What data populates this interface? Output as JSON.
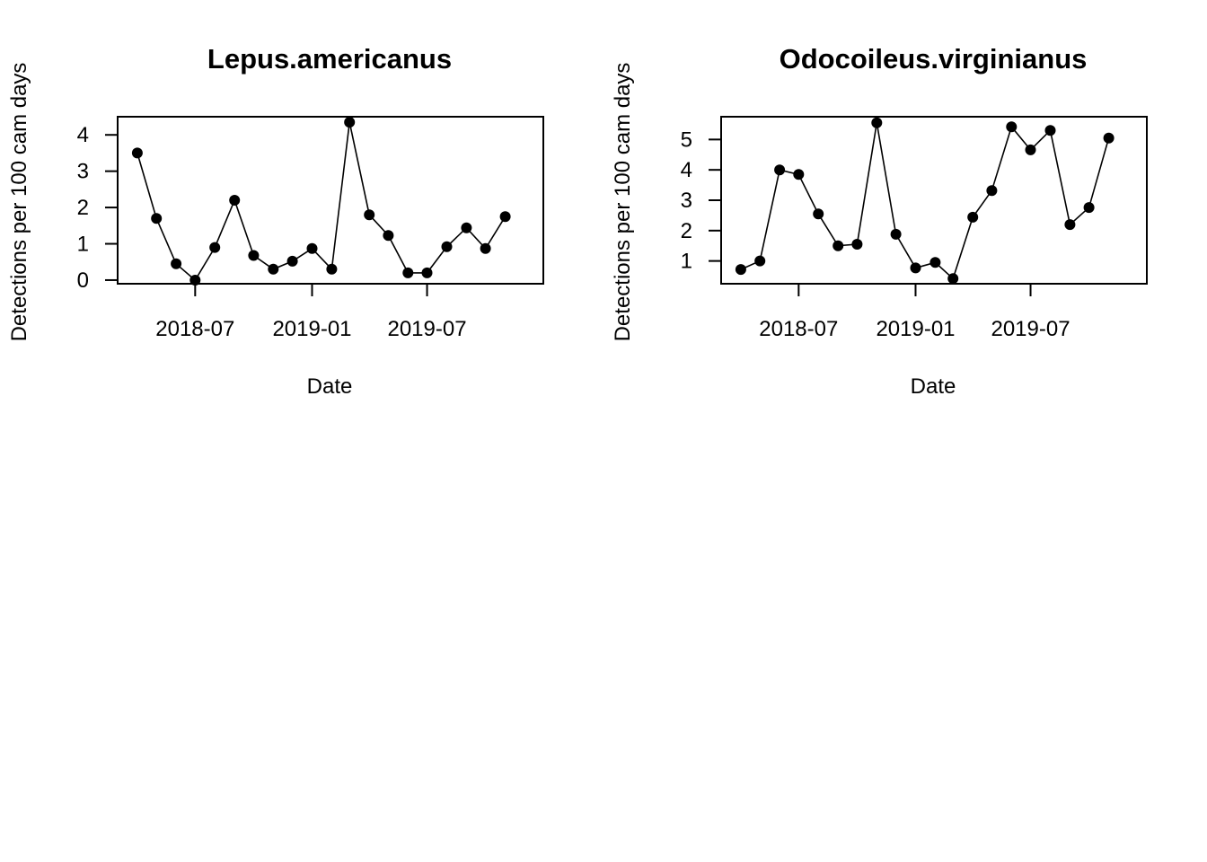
{
  "chart_data": [
    {
      "type": "line",
      "title": "Lepus.americanus",
      "xlabel": "Date",
      "ylabel": "Detections per 100 cam days",
      "x_ticks": [
        "2018-07",
        "2019-01",
        "2019-07"
      ],
      "y_ticks": [
        0,
        1,
        2,
        3,
        4
      ],
      "ylim": [
        -0.1,
        4.5
      ],
      "xlim": [
        "2018-03-01",
        "2019-12-31"
      ],
      "markers": "filled-circle",
      "grid": false,
      "series": [
        {
          "x": [
            "2018-04-01",
            "2018-05-01",
            "2018-06-01",
            "2018-07-01",
            "2018-08-01",
            "2018-09-01",
            "2018-10-01",
            "2018-11-01",
            "2018-12-01",
            "2019-01-01",
            "2019-02-01",
            "2019-03-01",
            "2019-04-01",
            "2019-05-01",
            "2019-06-01",
            "2019-07-01",
            "2019-08-01",
            "2019-09-01",
            "2019-10-01",
            "2019-11-01"
          ],
          "values": [
            3.5,
            1.7,
            0.45,
            0.0,
            0.9,
            2.2,
            0.68,
            0.3,
            0.52,
            0.87,
            0.3,
            4.35,
            1.8,
            1.23,
            0.2,
            0.2,
            0.92,
            1.44,
            0.87,
            1.75
          ]
        }
      ]
    },
    {
      "type": "line",
      "title": "Odocoileus.virginianus",
      "xlabel": "Date",
      "ylabel": "Detections per 100 cam days",
      "x_ticks": [
        "2018-07",
        "2019-01",
        "2019-07"
      ],
      "y_ticks": [
        1,
        2,
        3,
        4,
        5
      ],
      "ylim": [
        0.25,
        5.75
      ],
      "xlim": [
        "2018-03-01",
        "2019-12-31"
      ],
      "markers": "filled-circle",
      "grid": false,
      "series": [
        {
          "x": [
            "2018-04-01",
            "2018-05-01",
            "2018-06-01",
            "2018-07-01",
            "2018-08-01",
            "2018-09-01",
            "2018-10-01",
            "2018-11-01",
            "2018-12-01",
            "2019-01-01",
            "2019-02-01",
            "2019-03-01",
            "2019-04-01",
            "2019-05-01",
            "2019-06-01",
            "2019-07-01",
            "2019-08-01",
            "2019-09-01",
            "2019-10-01",
            "2019-11-01"
          ],
          "values": [
            0.72,
            1.0,
            4.0,
            3.85,
            2.55,
            1.5,
            1.55,
            5.55,
            1.88,
            0.77,
            0.95,
            0.42,
            2.44,
            3.32,
            5.42,
            4.66,
            5.3,
            2.2,
            2.76,
            5.05
          ]
        }
      ]
    }
  ]
}
